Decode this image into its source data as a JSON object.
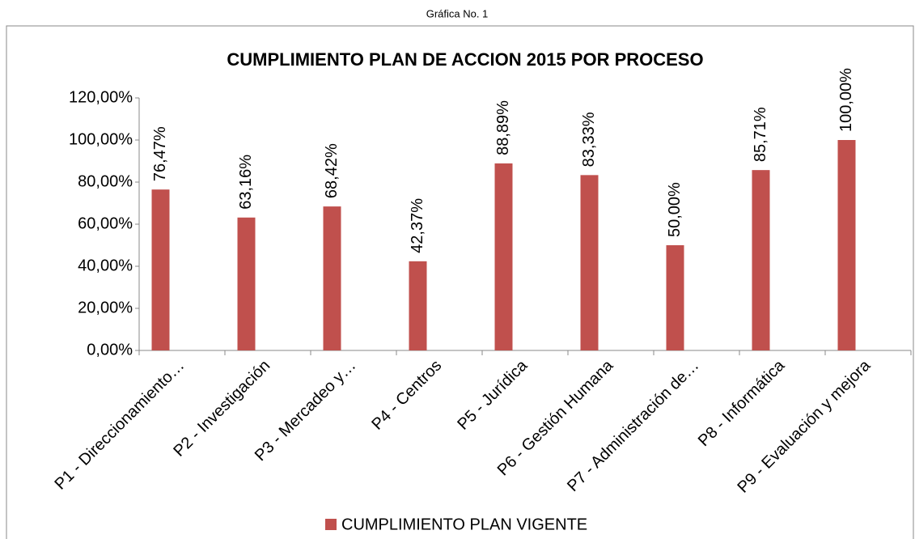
{
  "chart_data": {
    "type": "bar",
    "caption": "Gráfica No. 1",
    "title": "CUMPLIMIENTO PLAN DE ACCION 2015 POR PROCESO",
    "categories": [
      "P1 - Direccionamiento…",
      "P2 - Investigación",
      "P3 - Mercadeo y…",
      "P4 - Centros",
      "P5 - Jurídica",
      "P6 - Gestión Humana",
      "P7 - Administración de…",
      "P8 - Informática",
      "P9 - Evaluación y mejora"
    ],
    "series": [
      {
        "name": "CUMPLIMIENTO PLAN VIGENTE",
        "color": "#c0504d",
        "values": [
          76.47,
          63.16,
          68.42,
          42.37,
          88.89,
          83.33,
          50.0,
          85.71,
          100.0
        ],
        "value_labels": [
          "76,47%",
          "63,16%",
          "68,42%",
          "42,37%",
          "88,89%",
          "83,33%",
          "50,00%",
          "85,71%",
          "100,00%"
        ]
      }
    ],
    "ylim": [
      0,
      120
    ],
    "yticks": [
      {
        "value": 0,
        "label": "0,00%"
      },
      {
        "value": 20,
        "label": "20,00%"
      },
      {
        "value": 40,
        "label": "40,00%"
      },
      {
        "value": 60,
        "label": "60,00%"
      },
      {
        "value": 80,
        "label": "80,00%"
      },
      {
        "value": 100,
        "label": "100,00%"
      },
      {
        "value": 120,
        "label": "120,00%"
      }
    ],
    "legend": "bottom"
  }
}
